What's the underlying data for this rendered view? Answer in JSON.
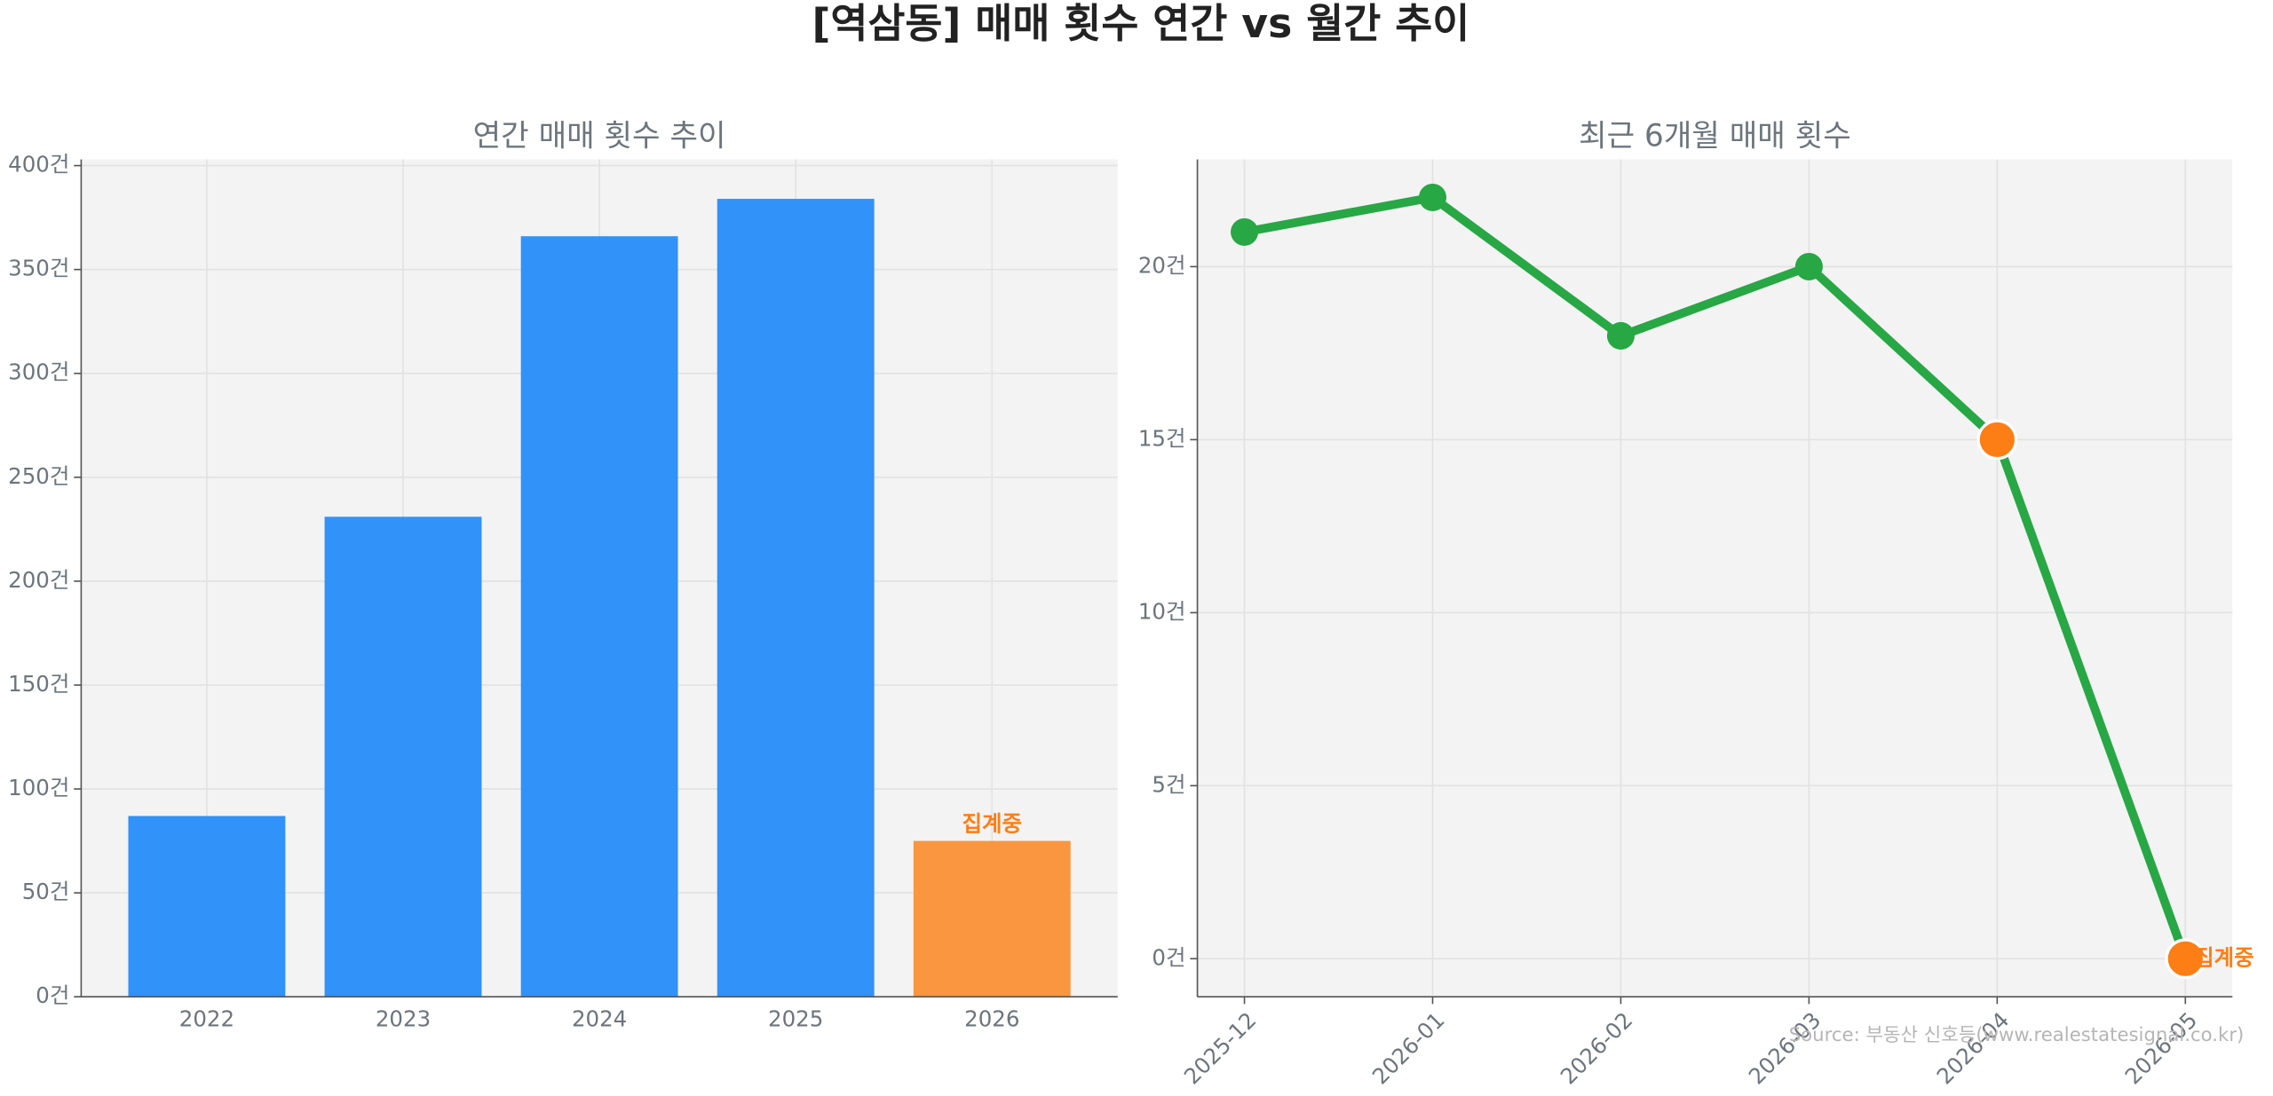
{
  "title": "[역삼동] 매매 횟수 연간 vs 월간 추이",
  "source": "Source: 부동산 신호등(www.realestatesignal.co.kr)",
  "chart_data": [
    {
      "type": "bar",
      "title": "연간 매매 횟수 추이",
      "categories": [
        "2022",
        "2023",
        "2024",
        "2025",
        "2026"
      ],
      "values": [
        87,
        231,
        366,
        384,
        75
      ],
      "colors": [
        "#3192f9",
        "#3192f9",
        "#3192f9",
        "#3192f9",
        "#f9963f"
      ],
      "annotation": "집계중",
      "annotation_color": "#fd7e14",
      "ylim": [
        0,
        403
      ],
      "yticks": [
        {
          "value": 0,
          "label": "0건"
        },
        {
          "value": 50,
          "label": "50건"
        },
        {
          "value": 100,
          "label": "100건"
        },
        {
          "value": 150,
          "label": "150건"
        },
        {
          "value": 200,
          "label": "200건"
        },
        {
          "value": 250,
          "label": "250건"
        },
        {
          "value": 300,
          "label": "300건"
        },
        {
          "value": 350,
          "label": "350건"
        },
        {
          "value": 400,
          "label": "400건"
        }
      ],
      "grid": true
    },
    {
      "type": "line",
      "title": "최근 6개월 매매 횟수",
      "categories": [
        "2025-12",
        "2026-01",
        "2026-02",
        "2026-03",
        "2026-04",
        "2026-05"
      ],
      "values": [
        21,
        22,
        18,
        20,
        15,
        0
      ],
      "color": "#28a745",
      "marker_colors": [
        "#28a745",
        "#28a745",
        "#28a745",
        "#28a745",
        "#fd7e14",
        "#fd7e14"
      ],
      "annotation": "집계중",
      "annotation_color": "#fd7e14",
      "ylim": [
        -1.1,
        23.1
      ],
      "yticks": [
        {
          "value": 0,
          "label": "0건"
        },
        {
          "value": 5,
          "label": "5건"
        },
        {
          "value": 10,
          "label": "10건"
        },
        {
          "value": 15,
          "label": "15건"
        },
        {
          "value": 20,
          "label": "20건"
        }
      ],
      "grid": true
    }
  ]
}
